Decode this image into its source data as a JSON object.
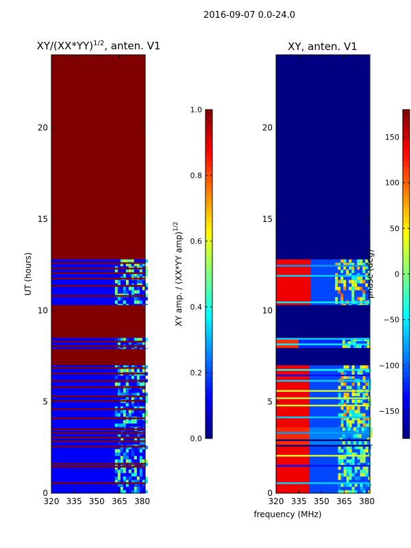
{
  "figure_title": "2016-09-07 0.0-24.0",
  "colors": {
    "jet_dark_red": "#800000",
    "jet_dark_blue": "#000080",
    "jet_red": "#ff2000",
    "jet_cyan": "#1ff2e0",
    "jet_yellow": "#e8ff10",
    "jet_blue": "#0030ff"
  },
  "chart_data": [
    {
      "type": "heatmap",
      "title_text": "XY/(XX*YY)",
      "title_sup": "1/2",
      "title_suffix": ", anten. V1",
      "xlabel": "",
      "ylabel": "UT (hours)",
      "xlim": [
        320,
        382
      ],
      "ylim": [
        0,
        24
      ],
      "xticks": [
        320,
        335,
        350,
        365,
        380
      ],
      "yticks": [
        0,
        5,
        10,
        15,
        20
      ],
      "colorbar": {
        "label_text": "XY amp. / (XX*YY amp)",
        "label_sup": "1/2",
        "range": [
          0.0,
          1.0
        ],
        "ticks": [
          0.0,
          0.2,
          0.4,
          0.6,
          0.8,
          1.0
        ],
        "tick_labels": [
          "0.0",
          "0.2",
          "0.4",
          "0.6",
          "0.8",
          "1.0"
        ]
      },
      "background_value": 1.0,
      "bands": [
        {
          "t0": 0.0,
          "t1": 2.6,
          "base": 0.12,
          "rfi_x0": 362,
          "rfi_x1": 382,
          "rfi_value": 0.33
        },
        {
          "t0": 2.6,
          "t1": 3.6,
          "base": 0.12,
          "rfi_x0": 364,
          "rfi_x1": 382,
          "rfi_value": 0.3
        },
        {
          "t0": 3.6,
          "t1": 7.0,
          "base": 0.12,
          "rfi_x0": 362,
          "rfi_x1": 382,
          "rfi_value": 0.35
        },
        {
          "t0": 7.9,
          "t1": 8.5,
          "base": 0.12,
          "rfi_x0": 362,
          "rfi_x1": 382,
          "rfi_value": 0.3
        },
        {
          "t0": 10.3,
          "t1": 12.8,
          "base": 0.12,
          "rfi_x0": 362,
          "rfi_x1": 382,
          "rfi_value": 0.35
        }
      ],
      "stripes": [
        {
          "t": 0.55,
          "value": 1.0
        },
        {
          "t": 1.45,
          "value": 1.0
        },
        {
          "t": 1.6,
          "value": 1.0
        },
        {
          "t": 2.55,
          "value": 1.0
        },
        {
          "t": 2.85,
          "value": 1.0
        },
        {
          "t": 3.05,
          "value": 1.0
        },
        {
          "t": 3.3,
          "value": 1.0
        },
        {
          "t": 3.5,
          "value": 1.0
        },
        {
          "t": 4.1,
          "value": 1.0
        },
        {
          "t": 4.6,
          "value": 1.0
        },
        {
          "t": 5.05,
          "value": 1.0
        },
        {
          "t": 5.3,
          "value": 1.0
        },
        {
          "t": 5.8,
          "value": 1.0
        },
        {
          "t": 6.15,
          "value": 1.0
        },
        {
          "t": 6.55,
          "value": 1.0
        },
        {
          "t": 6.85,
          "value": 1.0
        },
        {
          "t": 8.05,
          "value": 1.0
        },
        {
          "t": 8.3,
          "value": 1.0
        },
        {
          "t": 10.8,
          "value": 1.0
        },
        {
          "t": 11.35,
          "value": 1.0
        },
        {
          "t": 11.75,
          "value": 1.0
        },
        {
          "t": 12.05,
          "value": 1.0
        },
        {
          "t": 12.3,
          "value": 1.0
        },
        {
          "t": 12.6,
          "value": 1.0
        }
      ]
    },
    {
      "type": "heatmap",
      "title_text": "XY, anten. V1",
      "title_sup": "",
      "title_suffix": "",
      "xlabel": "frequency (MHz)",
      "ylabel": "",
      "xlim": [
        320,
        382
      ],
      "ylim": [
        0,
        24
      ],
      "xticks": [
        320,
        335,
        350,
        365,
        380
      ],
      "yticks": [
        0,
        5,
        10,
        15,
        20
      ],
      "colorbar": {
        "label_text": "phase (deg)",
        "label_sup": "",
        "range": [
          -180,
          180
        ],
        "ticks": [
          -150,
          -100,
          -50,
          0,
          50,
          100,
          150
        ],
        "tick_labels": [
          "−150",
          "−100",
          "−50",
          "0",
          "50",
          "100",
          "150"
        ]
      },
      "background_value": -180,
      "bands": [
        {
          "t0": 0.0,
          "t1": 2.6,
          "base": -110,
          "left_x1": 342,
          "left_value": 140,
          "rfi_x0": 361,
          "rfi_x1": 382,
          "rfi_value": -30
        },
        {
          "t0": 2.6,
          "t1": 3.6,
          "base": -90,
          "left_x1": 342,
          "left_value": 120,
          "rfi_x0": 362,
          "rfi_x1": 382,
          "rfi_value": -40
        },
        {
          "t0": 3.6,
          "t1": 7.0,
          "base": -110,
          "left_x1": 342,
          "left_value": 140,
          "rfi_x0": 361,
          "rfi_x1": 382,
          "rfi_value": 10
        },
        {
          "t0": 7.9,
          "t1": 8.5,
          "base": -120,
          "left_x1": 335,
          "left_value": 120,
          "rfi_x0": 362,
          "rfi_x1": 382,
          "rfi_value": -20
        },
        {
          "t0": 10.3,
          "t1": 12.8,
          "base": -110,
          "left_x1": 343,
          "left_value": 140,
          "rfi_x0": 359,
          "rfi_x1": 382,
          "rfi_value": 20
        }
      ],
      "stripes": [
        {
          "t": 0.55,
          "value": -60
        },
        {
          "t": 1.5,
          "value": -130
        },
        {
          "t": 2.05,
          "value": 30
        },
        {
          "t": 2.6,
          "value": -180
        },
        {
          "t": 2.9,
          "value": -180
        },
        {
          "t": 3.3,
          "value": -80
        },
        {
          "t": 4.15,
          "value": -60
        },
        {
          "t": 4.8,
          "value": 30
        },
        {
          "t": 5.2,
          "value": 20
        },
        {
          "t": 5.6,
          "value": 30
        },
        {
          "t": 6.15,
          "value": -60
        },
        {
          "t": 6.45,
          "value": -130
        },
        {
          "t": 6.75,
          "value": -40
        },
        {
          "t": 7.9,
          "value": -180
        },
        {
          "t": 8.15,
          "value": -50
        },
        {
          "t": 8.45,
          "value": -60
        },
        {
          "t": 10.45,
          "value": -50
        },
        {
          "t": 11.9,
          "value": -60
        },
        {
          "t": 12.45,
          "value": -80
        }
      ]
    }
  ]
}
